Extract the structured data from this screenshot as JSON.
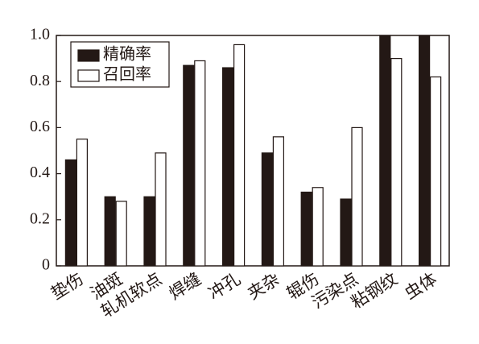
{
  "chart_data": {
    "type": "bar",
    "categories": [
      "垫伤",
      "油斑",
      "轧机软点",
      "焊缝",
      "冲孔",
      "夹杂",
      "辊伤",
      "污染点",
      "粘钢纹",
      "虫体"
    ],
    "series": [
      {
        "name": "精确率",
        "color": "#231815",
        "values": [
          0.46,
          0.3,
          0.3,
          0.87,
          0.86,
          0.49,
          0.32,
          0.29,
          1.0,
          1.0
        ]
      },
      {
        "name": "召回率",
        "color": "#ffffff",
        "values": [
          0.55,
          0.28,
          0.49,
          0.89,
          0.96,
          0.56,
          0.34,
          0.6,
          0.9,
          0.82
        ]
      }
    ],
    "ylim": [
      0,
      1
    ],
    "yticks": [
      0,
      0.2,
      0.4,
      0.6,
      0.8,
      {
        "value": 1,
        "label": "1.0"
      }
    ],
    "legend": "upper left"
  }
}
